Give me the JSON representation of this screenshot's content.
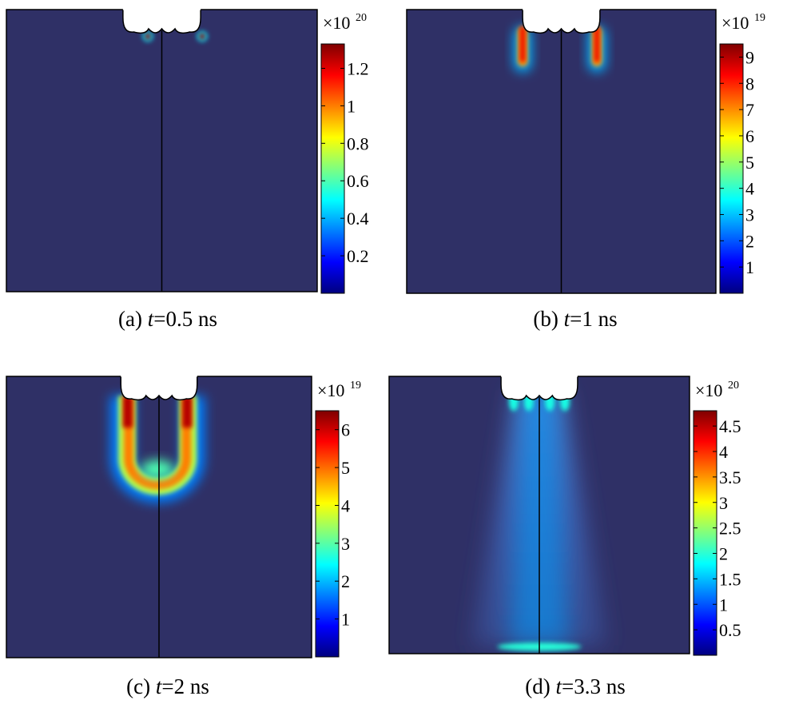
{
  "colors": {
    "background": "#2f3066",
    "outline": "#000000",
    "jet": [
      "#00007f",
      "#0000ff",
      "#007fff",
      "#00ffff",
      "#7fff7f",
      "#ffff00",
      "#ff7f00",
      "#ff0000",
      "#7f0000"
    ]
  },
  "chart_data": [
    {
      "type": "heatmap",
      "panel": "(a)",
      "caption_tag": "(a)",
      "caption_var": "t",
      "caption_eq": "=",
      "caption_value": "0.5 ns",
      "time_ns": 0.5,
      "multiplier": "×10",
      "exponent": "20",
      "colorbar_range": [
        0,
        1.33
      ],
      "colorbar_ticks": [
        0.2,
        0.4,
        0.6,
        0.8,
        1,
        1.2
      ],
      "tick_labels": [
        "0.2",
        "0.4",
        "0.6",
        "0.8",
        "1",
        "1.2"
      ],
      "features": [
        {
          "kind": "hotspot",
          "x": 0.455,
          "y": 0.095,
          "sx": 0.012,
          "sy": 0.012,
          "value": 1.3
        },
        {
          "kind": "hotspot",
          "x": 0.63,
          "y": 0.095,
          "sx": 0.012,
          "sy": 0.012,
          "value": 1.3
        }
      ]
    },
    {
      "type": "heatmap",
      "panel": "(b)",
      "caption_tag": "(b)",
      "caption_var": "t",
      "caption_eq": "=",
      "caption_value": "1 ns",
      "time_ns": 1,
      "multiplier": "×10",
      "exponent": "19",
      "colorbar_range": [
        0,
        9.5
      ],
      "colorbar_ticks": [
        1,
        2,
        3,
        4,
        5,
        6,
        7,
        8,
        9
      ],
      "tick_labels": [
        "1",
        "2",
        "3",
        "4",
        "5",
        "6",
        "7",
        "8",
        "9"
      ],
      "features": [
        {
          "kind": "column",
          "x": 0.375,
          "y0": 0.06,
          "y1": 0.2,
          "w": 0.018,
          "value": 8.5
        },
        {
          "kind": "column",
          "x": 0.615,
          "y0": 0.06,
          "y1": 0.2,
          "w": 0.018,
          "value": 8.5
        }
      ]
    },
    {
      "type": "heatmap",
      "panel": "(c)",
      "caption_tag": "(c)",
      "caption_var": "t",
      "caption_eq": "=",
      "caption_value": "2 ns",
      "time_ns": 2,
      "multiplier": "×10",
      "exponent": "19",
      "colorbar_range": [
        0,
        6.5
      ],
      "colorbar_ticks": [
        1,
        2,
        3,
        4,
        5,
        6
      ],
      "tick_labels": [
        "1",
        "2",
        "3",
        "4",
        "5",
        "6"
      ],
      "features": [
        {
          "kind": "u-shape",
          "xl": 0.395,
          "xr": 0.595,
          "y0": 0.07,
          "yb": 0.39,
          "value": 5.5
        }
      ]
    },
    {
      "type": "heatmap",
      "panel": "(d)",
      "caption_tag": "(d)",
      "caption_var": "t",
      "caption_eq": "=",
      "caption_value": "3.3 ns",
      "time_ns": 3.3,
      "multiplier": "×10",
      "exponent": "20",
      "colorbar_range": [
        0,
        4.8
      ],
      "colorbar_ticks": [
        0.5,
        1,
        1.5,
        2,
        2.5,
        3,
        3.5,
        4,
        4.5
      ],
      "tick_labels": [
        "0.5",
        "1",
        "1.5",
        "2",
        "2.5",
        "3",
        "3.5",
        "4",
        "4.5"
      ],
      "features": [
        {
          "kind": "plume",
          "x": 0.5,
          "y0": 0.05,
          "y1": 0.97,
          "value": 0.9
        },
        {
          "kind": "base",
          "x": 0.5,
          "y": 0.975,
          "value": 1.5
        }
      ]
    }
  ]
}
